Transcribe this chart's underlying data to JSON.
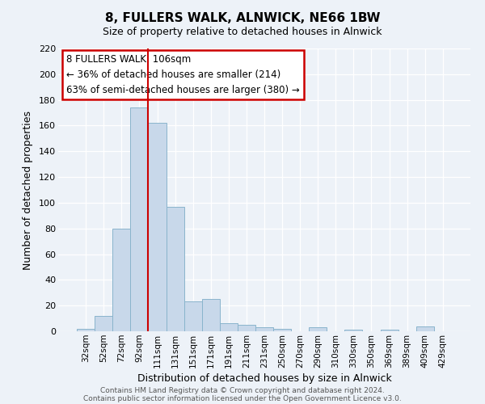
{
  "title": "8, FULLERS WALK, ALNWICK, NE66 1BW",
  "subtitle": "Size of property relative to detached houses in Alnwick",
  "xlabel": "Distribution of detached houses by size in Alnwick",
  "ylabel": "Number of detached properties",
  "bar_labels": [
    "32sqm",
    "52sqm",
    "72sqm",
    "92sqm",
    "111sqm",
    "131sqm",
    "151sqm",
    "171sqm",
    "191sqm",
    "211sqm",
    "231sqm",
    "250sqm",
    "270sqm",
    "290sqm",
    "310sqm",
    "330sqm",
    "350sqm",
    "369sqm",
    "389sqm",
    "409sqm",
    "429sqm"
  ],
  "bar_values": [
    2,
    12,
    80,
    174,
    162,
    97,
    23,
    25,
    6,
    5,
    3,
    2,
    0,
    3,
    0,
    1,
    0,
    1,
    0,
    4,
    0
  ],
  "bar_color": "#c8d8ea",
  "bar_edge_color": "#8ab4cc",
  "red_line_index": 4,
  "annotation_title": "8 FULLERS WALK: 106sqm",
  "annotation_line1": "← 36% of detached houses are smaller (214)",
  "annotation_line2": "63% of semi-detached houses are larger (380) →",
  "annotation_box_color": "#ffffff",
  "annotation_box_edge": "#cc0000",
  "ylim": [
    0,
    220
  ],
  "yticks": [
    0,
    20,
    40,
    60,
    80,
    100,
    120,
    140,
    160,
    180,
    200,
    220
  ],
  "footer1": "Contains HM Land Registry data © Crown copyright and database right 2024.",
  "footer2": "Contains public sector information licensed under the Open Government Licence v3.0.",
  "bg_color": "#edf2f8",
  "plot_bg_color": "#edf2f8",
  "grid_color": "#ffffff"
}
